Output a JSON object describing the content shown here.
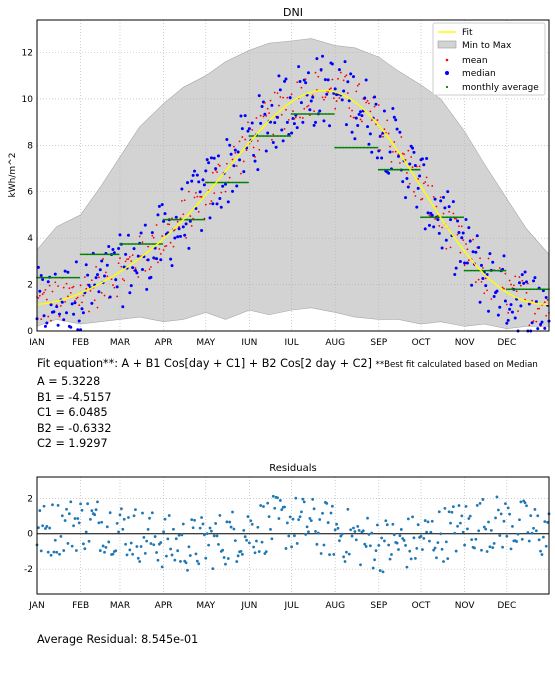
{
  "fit_text": {
    "equation": "Fit equation**: A + B1 Cos[day + C1] + B2 Cos[2 day + C2]",
    "note": "**Best fit calculated based on Median",
    "params": [
      "A = 5.3228",
      "B1 = -4.5157",
      "C1 = 6.0485",
      "B2 = -0.6332",
      "C2 = 1.9297"
    ],
    "avg_residual": "Average Residual: 8.545e-01"
  },
  "colors": {
    "fit": "#ffff00",
    "band": "#d3d3d3",
    "mean": "#ff0000",
    "median": "#0000ff",
    "monthly": "#008000",
    "residual": "#1f77b4"
  },
  "chart_data": [
    {
      "type": "scatter",
      "title": "DNI",
      "xlabel": "",
      "ylabel": "kWh/m^2",
      "x_categories": [
        "JAN",
        "FEB",
        "MAR",
        "APR",
        "MAY",
        "JUN",
        "JUL",
        "AUG",
        "SEP",
        "OCT",
        "NOV",
        "DEC"
      ],
      "xlim": [
        1,
        365
      ],
      "ylim": [
        0,
        13.4
      ],
      "yticks": [
        0,
        2,
        4,
        6,
        8,
        10,
        12
      ],
      "grid": true,
      "legend_position": "top-right",
      "legend": [
        "Fit",
        "Min to Max",
        "mean",
        "median",
        "monthly average"
      ],
      "fit_params": {
        "A": 5.3228,
        "B1": -4.5157,
        "C1": 6.0485,
        "B2": -0.6332,
        "C2": 1.9297
      },
      "monthly_average": [
        {
          "month": "JAN",
          "value": 2.3
        },
        {
          "month": "FEB",
          "value": 3.3
        },
        {
          "month": "MAR",
          "value": 3.75
        },
        {
          "month": "APR",
          "value": 4.8
        },
        {
          "month": "MAY",
          "value": 6.4
        },
        {
          "month": "JUN",
          "value": 8.4
        },
        {
          "month": "JUL",
          "value": 9.35
        },
        {
          "month": "AUG",
          "value": 7.9
        },
        {
          "month": "SEP",
          "value": 6.95
        },
        {
          "month": "OCT",
          "value": 4.9
        },
        {
          "month": "NOV",
          "value": 2.6
        },
        {
          "month": "DEC",
          "value": 1.8
        }
      ],
      "min_to_max_band": {
        "day": [
          1,
          15,
          32,
          46,
          60,
          74,
          91,
          105,
          121,
          135,
          152,
          166,
          182,
          196,
          213,
          227,
          244,
          258,
          274,
          288,
          305,
          319,
          335,
          349,
          365
        ],
        "min": [
          0.2,
          0.5,
          0.3,
          0.4,
          0.5,
          0.6,
          0.4,
          0.5,
          0.8,
          0.5,
          0.9,
          0.7,
          0.9,
          1.0,
          0.8,
          0.6,
          0.5,
          0.5,
          0.3,
          0.4,
          0.2,
          0.3,
          0.1,
          0.2,
          0.2
        ],
        "max": [
          3.5,
          4.5,
          5.0,
          6.2,
          7.5,
          8.8,
          9.8,
          10.5,
          11.0,
          11.6,
          12.1,
          12.4,
          12.5,
          12.6,
          12.3,
          12.2,
          11.8,
          11.2,
          10.6,
          10.0,
          8.6,
          7.2,
          5.7,
          4.4,
          3.3
        ]
      },
      "mean_median_note": "daily mean and median points scatter around the fit curve"
    },
    {
      "type": "scatter",
      "title": "Residuals",
      "xlabel": "",
      "ylabel": "",
      "x_categories": [
        "JAN",
        "FEB",
        "MAR",
        "APR",
        "MAY",
        "JUN",
        "JUL",
        "AUG",
        "SEP",
        "OCT",
        "NOV",
        "DEC"
      ],
      "xlim": [
        1,
        365
      ],
      "ylim": [
        -3.4,
        3.2
      ],
      "yticks": [
        -2,
        0,
        2
      ],
      "grid": true
    }
  ]
}
